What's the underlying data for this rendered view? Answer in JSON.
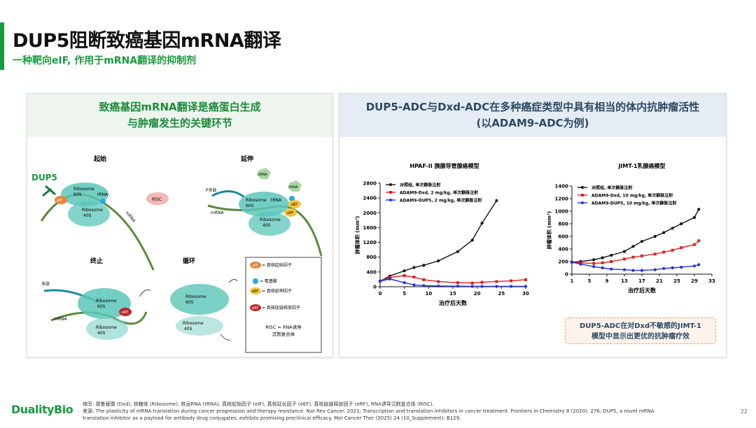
{
  "header": {
    "title": "DUP5阻断致癌基因mRNA翻译",
    "subtitle": "一种靶向eIF, 作用于mRNA翻译的抑制剂"
  },
  "left_panel": {
    "heading_line1": "致癌基因mRNA翻译是癌蛋白生成",
    "heading_line2": "与肿瘤发生的关键环节",
    "stages": {
      "initiation": "起始",
      "elongation": "延伸",
      "termination": "终止",
      "recycling": "循环"
    },
    "dup5_label": "DUP5",
    "labels": {
      "ribosome": "Ribosome",
      "s60": "60S",
      "s40": "40S",
      "trna": "tRNA",
      "eif": "eIF",
      "eef": "eEF",
      "erf": "eRF",
      "risc": "RISC",
      "mrna": "mRNA",
      "peptide_p": "P多肽",
      "peptide": "多肽"
    },
    "legend": {
      "eif": "= 真核起始因子",
      "amino": "= 氨基酸",
      "eef": "= 真核延伸因子",
      "erf": "= 真核肽链释放因子",
      "risc_line1": "RISC = RNA诱导",
      "risc_line2": "沉默复合体"
    }
  },
  "right_panel": {
    "heading_line1": "DUP5-ADC与Dxd-ADC在多种癌症类型中具有相当的体内抗肿瘤活性",
    "heading_line2": "(以ADAM9-ADC为例)",
    "callout_line1": "DUP5-ADC在对Dxd不敏感的JIMT-1",
    "callout_line2": "模型中显示出更优的抗肿瘤疗效"
  },
  "chart_data": [
    {
      "type": "line",
      "title": "HPAF-II 胰腺导管腺癌模型",
      "xlabel": "治疗后天数",
      "ylabel": "肿瘤体积 (mm³)",
      "x_ticks": [
        0,
        5,
        10,
        15,
        20,
        25,
        30
      ],
      "y_ticks": [
        0,
        400,
        800,
        1200,
        1600,
        2000,
        2400,
        2800
      ],
      "xlim": [
        0,
        30
      ],
      "ylim": [
        0,
        2800
      ],
      "legend_position": "top-left",
      "series": [
        {
          "name": "对照组, 单次静脉注射",
          "color": "#111111",
          "x": [
            0,
            2,
            5,
            7,
            9,
            12,
            16,
            19,
            21,
            24
          ],
          "y": [
            150,
            290,
            430,
            520,
            580,
            700,
            950,
            1260,
            1720,
            2330
          ]
        },
        {
          "name": "ADAM9-Dxd, 2 mg/kg, 单次静脉注射",
          "color": "#e02020",
          "x": [
            0,
            2,
            5,
            7,
            9,
            12,
            16,
            19,
            21,
            24,
            27,
            30
          ],
          "y": [
            150,
            250,
            300,
            260,
            190,
            140,
            110,
            100,
            120,
            140,
            160,
            190
          ]
        },
        {
          "name": "ADAM9-DUP5, 2 mg/kg, 单次静脉注射",
          "color": "#2030e0",
          "x": [
            0,
            2,
            5,
            7,
            9,
            12,
            16,
            19,
            21,
            24,
            27,
            30
          ],
          "y": [
            150,
            210,
            110,
            50,
            30,
            20,
            15,
            10,
            10,
            10,
            10,
            10
          ]
        }
      ]
    },
    {
      "type": "line",
      "title": "JIMT-1乳腺癌模型",
      "xlabel": "治疗后天数",
      "ylabel": "肿瘤体积 (mm³)",
      "x_ticks": [
        1,
        5,
        9,
        13,
        17,
        21,
        25,
        29,
        33
      ],
      "y_ticks": [
        0,
        200,
        400,
        600,
        800,
        1000,
        1200,
        1400
      ],
      "xlim": [
        1,
        33
      ],
      "ylim": [
        0,
        1400
      ],
      "legend_position": "top-left",
      "series": [
        {
          "name": "对照组, 单次静脉注射",
          "color": "#111111",
          "x": [
            1,
            3,
            6,
            8,
            10,
            13,
            15,
            17,
            20,
            22,
            24,
            26,
            29,
            30
          ],
          "y": [
            190,
            200,
            230,
            260,
            300,
            360,
            440,
            520,
            600,
            660,
            730,
            800,
            900,
            1030
          ]
        },
        {
          "name": "ADAM9-Dxd, 10 mg/kg, 单次静脉注射",
          "color": "#e02020",
          "x": [
            1,
            3,
            6,
            8,
            10,
            13,
            15,
            17,
            20,
            22,
            24,
            26,
            29,
            30
          ],
          "y": [
            190,
            180,
            170,
            180,
            200,
            240,
            270,
            290,
            320,
            350,
            380,
            420,
            470,
            530
          ]
        },
        {
          "name": "ADAM9-DUP5, 10 mg/kg, 单次静脉注射",
          "color": "#2030e0",
          "x": [
            1,
            3,
            6,
            8,
            10,
            13,
            15,
            17,
            20,
            22,
            24,
            26,
            29,
            30
          ],
          "y": [
            190,
            160,
            120,
            100,
            80,
            70,
            60,
            60,
            70,
            90,
            100,
            110,
            130,
            150
          ]
        }
      ]
    }
  ],
  "footer": {
    "logo": "DualityBio",
    "note1": "缩写: 德鲁替康 (Dxd), 核糖体 (Ribosome), 转运RNA (tRNA), 真核起始因子 (eIF), 真核延长因子 (eEF), 真核肽链释放因子 (eRF), RNA诱导沉默复合体 (RISC).",
    "note2": "来源: The plasticity of mRNA translation during cancer progression and therapy resistance. Nat Rev Cancer. 2021; Transcription and translation inhibitors in cancer treatment. Frontiers in Chemistry 8 (2020): 276; DUP5, a novel mRNA",
    "note3": "translation inhibitor as a payload for antibody drug conjugates, exhibits promising preclinical efficacy. Mol Cancer Ther (2025) 24 (10_Supplement): B129.",
    "page": "22"
  }
}
